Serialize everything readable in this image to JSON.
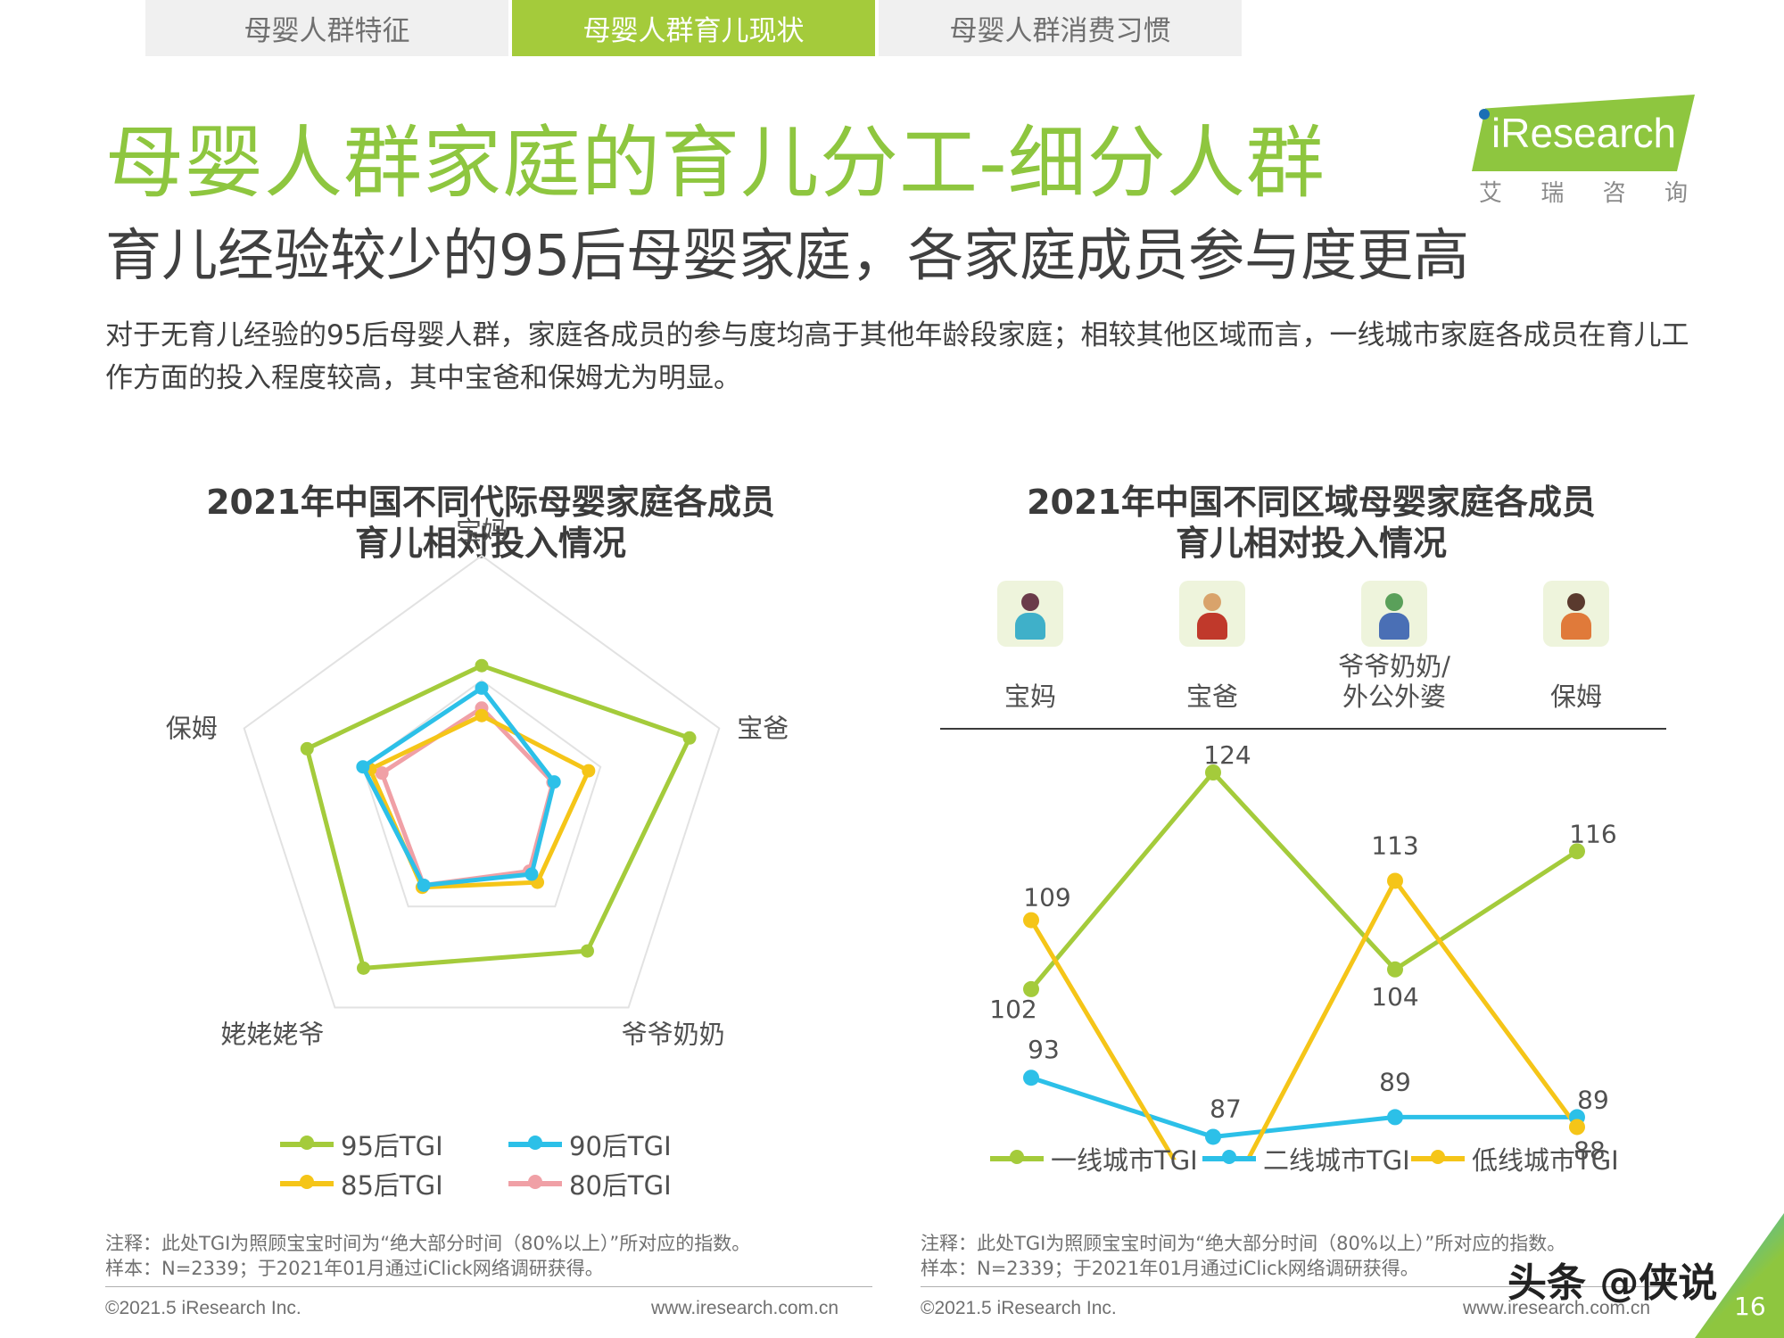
{
  "tabs": [
    {
      "label": "母婴人群特征",
      "active": false
    },
    {
      "label": "母婴人群育儿现状",
      "active": true
    },
    {
      "label": "母婴人群消费习惯",
      "active": false
    }
  ],
  "title": "母婴人群家庭的育儿分工-细分人群",
  "subtitle": "育儿经验较少的95后母婴家庭，各家庭成员参与度更高",
  "intro": "对于无育儿经验的95后母婴人群，家庭各成员的参与度均高于其他年龄段家庭；相较其他区域而言，一线城市家庭各成员在育儿工作方面的投入程度较高，其中宝爸和保姆尤为明显。",
  "logo": {
    "name": "iResearch",
    "sub": [
      "艾",
      "瑞",
      "咨",
      "询"
    ]
  },
  "colors": {
    "accent": "#8ec63f",
    "series_95": "#a4cb3b",
    "series_90": "#2cc0e8",
    "series_85": "#f5c518",
    "series_80": "#f0a0a6"
  },
  "chart_data": [
    {
      "type": "radar",
      "title_line1": "2021年中国不同代际母婴家庭各成员",
      "title_line2": "育儿相对投入情况",
      "axes": [
        "宝妈",
        "宝爸",
        "爷爷奶奶",
        "姥姥姥爷",
        "保姆"
      ],
      "grid": true,
      "legend": "bottom",
      "series": [
        {
          "name": "95后TGI",
          "color": "#a4cb3b",
          "values": [
            112,
            175,
            144,
            161,
            147
          ]
        },
        {
          "name": "90后TGI",
          "color": "#2cc0e8",
          "values": [
            94,
            61,
            68,
            79,
            100
          ]
        },
        {
          "name": "85后TGI",
          "color": "#f5c518",
          "values": [
            72,
            90,
            76,
            81,
            94
          ]
        },
        {
          "name": "80后TGI",
          "color": "#f0a0a6",
          "values": [
            78,
            60,
            65,
            79,
            84
          ]
        }
      ]
    },
    {
      "type": "line",
      "title_line1": "2021年中国不同区域母婴家庭各成员",
      "title_line2": "育儿相对投入情况",
      "categories": [
        "宝妈",
        "宝爸",
        "爷爷奶奶/\n外公外婆",
        "保姆"
      ],
      "ylim": [
        70,
        130
      ],
      "legend": "bottom",
      "series": [
        {
          "name": "一线城市TGI",
          "color": "#a4cb3b",
          "values": [
            102,
            124,
            104,
            116
          ]
        },
        {
          "name": "二线城市TGI",
          "color": "#2cc0e8",
          "values": [
            93,
            87,
            89,
            89
          ]
        },
        {
          "name": "低线城市TGI",
          "color": "#f5c518",
          "values": [
            109,
            78,
            113,
            88
          ]
        }
      ]
    }
  ],
  "line_members": [
    {
      "label": "宝妈",
      "icon": "mother-icon"
    },
    {
      "label": "宝爸",
      "icon": "father-icon"
    },
    {
      "label_line1": "爷爷奶奶/",
      "label_line2": "外公外婆",
      "icon": "grandparents-icon"
    },
    {
      "label": "保姆",
      "icon": "nanny-icon"
    }
  ],
  "notes": {
    "note": "注释：此处TGI为照顾宝宝时间为“绝大部分时间（80%以上）”所对应的指数。",
    "sample": "样本：N=2339；于2021年01月通过iClick网络调研获得。"
  },
  "footer": {
    "copyright": "©2021.5 iResearch Inc.",
    "website": "www.iresearch.com.cn"
  },
  "watermark": "头条 @侠说",
  "page_number": "16"
}
